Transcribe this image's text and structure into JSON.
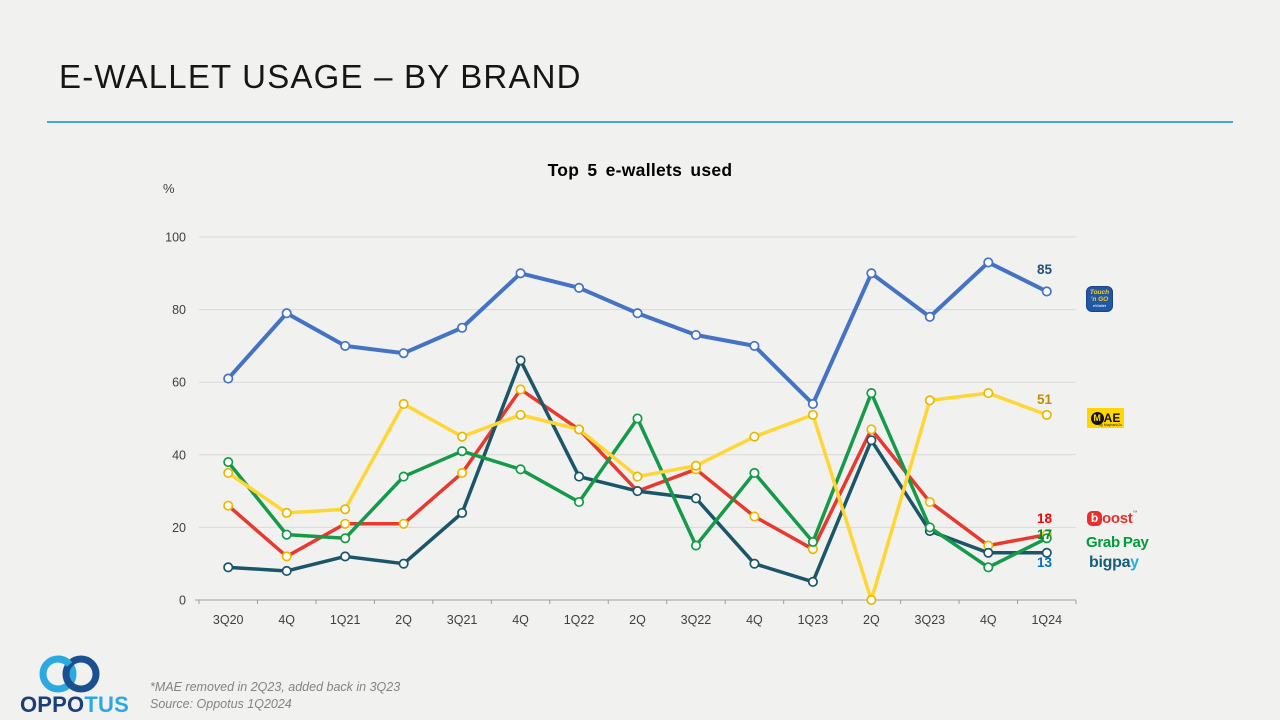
{
  "page": {
    "title": "E-WALLET USAGE – BY BRAND"
  },
  "chart_data": {
    "type": "line",
    "title": "Top 5 e-wallets used",
    "ylabel": "%",
    "ylim": [
      0,
      100
    ],
    "yticks": [
      0,
      20,
      40,
      60,
      80,
      100
    ],
    "grid": true,
    "legend_position": "right",
    "categories": [
      "3Q20",
      "4Q",
      "1Q21",
      "2Q",
      "3Q21",
      "4Q",
      "1Q22",
      "2Q",
      "3Q22",
      "4Q",
      "1Q23",
      "2Q",
      "3Q23",
      "4Q",
      "1Q24"
    ],
    "series": [
      {
        "name": "Touch 'n Go eWallet",
        "color": "#4472c4",
        "marker_ring": "#4472c4",
        "end_label": "85",
        "end_label_color": "#1f4e79",
        "values": [
          61,
          79,
          70,
          68,
          75,
          90,
          86,
          79,
          73,
          70,
          54,
          90,
          78,
          93,
          85
        ]
      },
      {
        "name": "MAE",
        "color": "#ffd633",
        "marker_ring": "#e8b800",
        "end_label": "51",
        "end_label_color": "#bf8f00",
        "values": [
          35,
          24,
          25,
          54,
          45,
          51,
          47,
          34,
          37,
          45,
          51,
          0,
          55,
          57,
          51
        ]
      },
      {
        "name": "Boost",
        "color": "#e8392f",
        "marker_ring": "#f0b800",
        "end_label": "18",
        "end_label_color": "#ff0000",
        "values": [
          26,
          12,
          21,
          21,
          35,
          58,
          47,
          30,
          36,
          23,
          14,
          47,
          27,
          15,
          18
        ]
      },
      {
        "name": "GrabPay",
        "color": "#149a48",
        "marker_ring": "#149a48",
        "end_label": "17",
        "end_label_color": "#00882f",
        "values": [
          38,
          18,
          17,
          34,
          41,
          36,
          27,
          50,
          15,
          35,
          16,
          57,
          20,
          9,
          17
        ]
      },
      {
        "name": "BigPay",
        "color": "#1a5568",
        "marker_ring": "#1a5568",
        "end_label": "13",
        "end_label_color": "#0070c0",
        "values": [
          9,
          8,
          12,
          10,
          24,
          66,
          34,
          30,
          28,
          10,
          5,
          44,
          19,
          13,
          13
        ]
      }
    ]
  },
  "legend": {
    "tng": {
      "line1": "Touch",
      "line2": "'n GO",
      "sub": "eWallet"
    },
    "mae": {
      "m": "M",
      "ae": "AE",
      "sub": "by Maybank2u"
    },
    "boost": {
      "b": "b",
      "rest": "oost",
      "tm": "™"
    },
    "grabpay": {
      "part1": "Grab",
      "part2": "Pay"
    },
    "bigpay": {
      "part1": "bigpa",
      "part2": "y"
    }
  },
  "footer": {
    "note1": "*MAE removed in 2Q23, added back in 3Q23",
    "note2": "Source: Oppotus 1Q2024",
    "logo_part1": "OPPO",
    "logo_part2": "TUS"
  },
  "colors": {
    "background": "#f1f1f0",
    "title_rule": "#3fa9dc",
    "gridline": "#d9d9d9",
    "axis": "#9e9e9e",
    "tick_text": "#3f3f3f"
  }
}
